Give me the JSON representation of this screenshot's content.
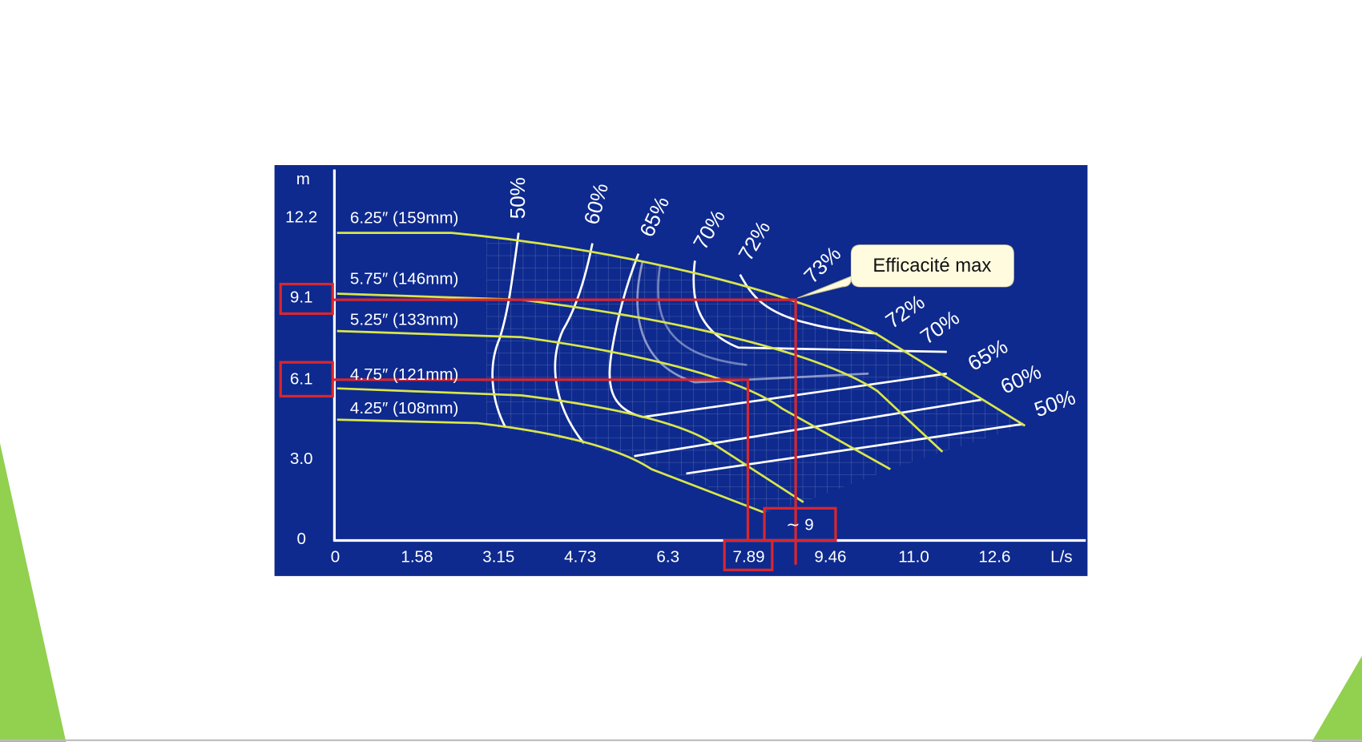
{
  "slide": {
    "chart": {
      "y_unit": "m",
      "x_unit": "L/s",
      "y_ticks": [
        "12.2",
        "9.1",
        "6.1",
        "3.0",
        "0"
      ],
      "x_ticks": [
        "0",
        "1.58",
        "3.15",
        "4.73",
        "6.3",
        "7.89",
        "9.46",
        "11.0",
        "12.6"
      ],
      "impeller_labels": [
        "6.25″ (159mm)",
        "5.75″ (146mm)",
        "5.25″ (133mm)",
        "4.75″ (121mm)",
        "4.25″ (108mm)"
      ],
      "efficiency_top": [
        "50%",
        "60%",
        "65%",
        "70%",
        "72%",
        "73%"
      ],
      "efficiency_right": [
        "72%",
        "70%",
        "65%",
        "60%",
        "50%"
      ],
      "approx_label": "∼ 9"
    },
    "callout": "Efficacité max"
  }
}
